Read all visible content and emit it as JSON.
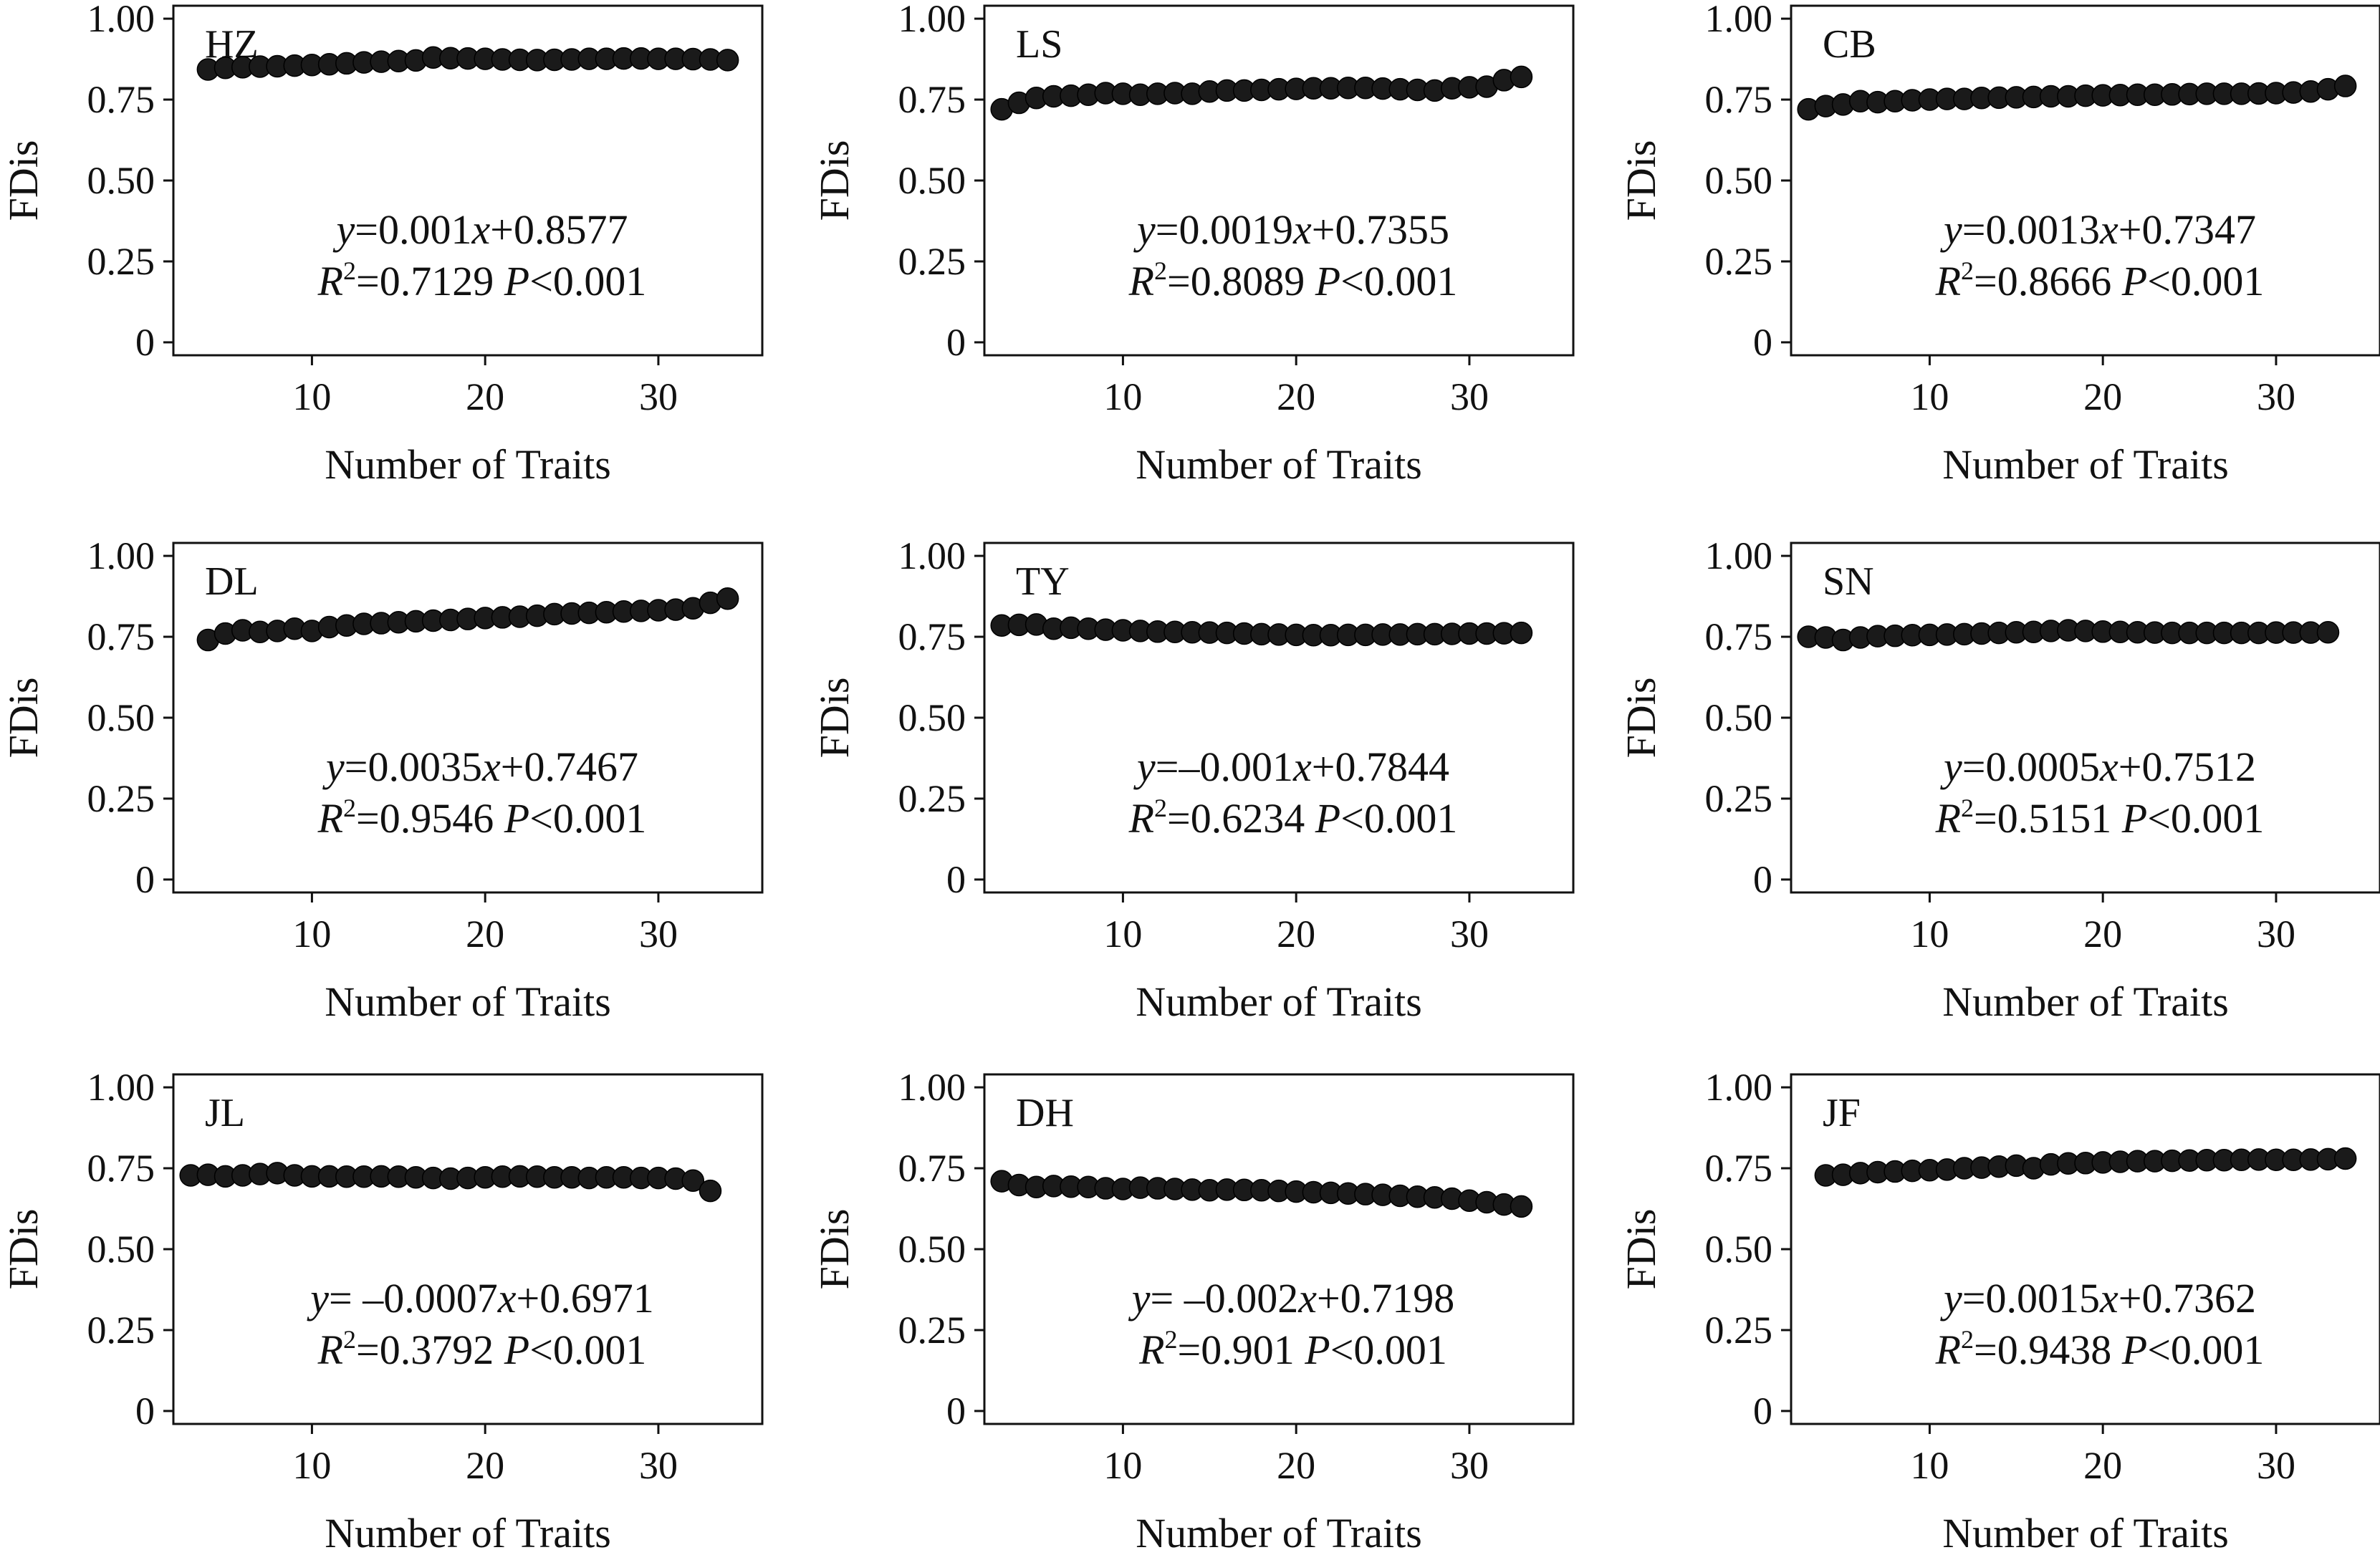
{
  "chart_data": [
    {
      "type": "scatter",
      "panel_label": "HZ",
      "xlabel": "Number of Traits",
      "ylabel": "FDis",
      "xticks": [
        10,
        20,
        30
      ],
      "yticks": [
        "0",
        "0.25",
        "0.50",
        "0.75",
        "1.00"
      ],
      "xlim": [
        2,
        36
      ],
      "ylim": [
        -0.04,
        1.04
      ],
      "x": [
        4,
        5,
        6,
        7,
        8,
        9,
        10,
        11,
        12,
        13,
        14,
        15,
        16,
        17,
        18,
        19,
        20,
        21,
        22,
        23,
        24,
        25,
        26,
        27,
        28,
        29,
        30,
        31,
        32,
        33,
        34
      ],
      "y": [
        0.843,
        0.848,
        0.85,
        0.852,
        0.853,
        0.855,
        0.857,
        0.859,
        0.862,
        0.865,
        0.867,
        0.869,
        0.871,
        0.88,
        0.878,
        0.877,
        0.876,
        0.874,
        0.873,
        0.872,
        0.873,
        0.874,
        0.876,
        0.876,
        0.877,
        0.877,
        0.876,
        0.876,
        0.875,
        0.874,
        0.872
      ],
      "equation": {
        "y": "y",
        "eq1": "=0.001",
        "x": "x",
        "eq2": "+0.8577"
      },
      "stats": {
        "r": "R",
        "sup": "2",
        "rval": "=0.7129 ",
        "p": "P",
        "pval": "<0.001"
      }
    },
    {
      "type": "scatter",
      "panel_label": "LS",
      "xlabel": "Number of Traits",
      "ylabel": "FDis",
      "xticks": [
        10,
        20,
        30
      ],
      "yticks": [
        "0",
        "0.25",
        "0.50",
        "0.75",
        "1.00"
      ],
      "xlim": [
        2,
        36
      ],
      "ylim": [
        -0.04,
        1.04
      ],
      "x": [
        3,
        4,
        5,
        6,
        7,
        8,
        9,
        10,
        11,
        12,
        13,
        14,
        15,
        16,
        17,
        18,
        19,
        20,
        21,
        22,
        23,
        24,
        25,
        26,
        27,
        28,
        29,
        30,
        31,
        32,
        33
      ],
      "y": [
        0.72,
        0.74,
        0.755,
        0.76,
        0.762,
        0.765,
        0.77,
        0.768,
        0.765,
        0.768,
        0.77,
        0.768,
        0.775,
        0.778,
        0.778,
        0.78,
        0.782,
        0.783,
        0.785,
        0.785,
        0.786,
        0.786,
        0.784,
        0.782,
        0.78,
        0.778,
        0.785,
        0.788,
        0.79,
        0.81,
        0.82
      ],
      "equation": {
        "y": "y",
        "eq1": "=0.0019",
        "x": "x",
        "eq2": "+0.7355"
      },
      "stats": {
        "r": "R",
        "sup": "2",
        "rval": "=0.8089 ",
        "p": "P",
        "pval": "<0.001"
      }
    },
    {
      "type": "scatter",
      "panel_label": "CB",
      "xlabel": "Number of Traits",
      "ylabel": "FDis",
      "xticks": [
        10,
        20,
        30
      ],
      "yticks": [
        "0",
        "0.25",
        "0.50",
        "0.75",
        "1.00"
      ],
      "xlim": [
        2,
        36
      ],
      "ylim": [
        -0.04,
        1.04
      ],
      "x": [
        3,
        4,
        5,
        6,
        7,
        8,
        9,
        10,
        11,
        12,
        13,
        14,
        15,
        16,
        17,
        18,
        19,
        20,
        21,
        22,
        23,
        24,
        25,
        26,
        27,
        28,
        29,
        30,
        31,
        32,
        33,
        34
      ],
      "y": [
        0.72,
        0.73,
        0.735,
        0.745,
        0.742,
        0.745,
        0.748,
        0.75,
        0.752,
        0.752,
        0.755,
        0.756,
        0.757,
        0.758,
        0.76,
        0.76,
        0.762,
        0.763,
        0.764,
        0.765,
        0.765,
        0.766,
        0.767,
        0.768,
        0.768,
        0.768,
        0.769,
        0.77,
        0.772,
        0.775,
        0.782,
        0.792
      ],
      "equation": {
        "y": "y",
        "eq1": "=0.0013",
        "x": "x",
        "eq2": "+0.7347"
      },
      "stats": {
        "r": "R",
        "sup": "2",
        "rval": "=0.8666 ",
        "p": "P",
        "pval": "<0.001"
      }
    },
    {
      "type": "scatter",
      "panel_label": "DL",
      "xlabel": "Number of Traits",
      "ylabel": "FDis",
      "xticks": [
        10,
        20,
        30
      ],
      "yticks": [
        "0",
        "0.25",
        "0.50",
        "0.75",
        "1.00"
      ],
      "xlim": [
        2,
        36
      ],
      "ylim": [
        -0.04,
        1.04
      ],
      "x": [
        4,
        5,
        6,
        7,
        8,
        9,
        10,
        11,
        12,
        13,
        14,
        15,
        16,
        17,
        18,
        19,
        20,
        21,
        22,
        23,
        24,
        25,
        26,
        27,
        28,
        29,
        30,
        31,
        32,
        33,
        34
      ],
      "y": [
        0.74,
        0.76,
        0.77,
        0.765,
        0.768,
        0.775,
        0.768,
        0.78,
        0.785,
        0.79,
        0.792,
        0.795,
        0.798,
        0.8,
        0.802,
        0.805,
        0.808,
        0.81,
        0.812,
        0.815,
        0.82,
        0.822,
        0.824,
        0.826,
        0.828,
        0.83,
        0.832,
        0.834,
        0.838,
        0.855,
        0.868
      ],
      "equation": {
        "y": "y",
        "eq1": "=0.0035",
        "x": "x",
        "eq2": "+0.7467"
      },
      "stats": {
        "r": "R",
        "sup": "2",
        "rval": "=0.9546 ",
        "p": "P",
        "pval": "<0.001"
      }
    },
    {
      "type": "scatter",
      "panel_label": "TY",
      "xlabel": "Number of Traits",
      "ylabel": "FDis",
      "xticks": [
        10,
        20,
        30
      ],
      "yticks": [
        "0",
        "0.25",
        "0.50",
        "0.75",
        "1.00"
      ],
      "xlim": [
        2,
        36
      ],
      "ylim": [
        -0.04,
        1.04
      ],
      "x": [
        3,
        4,
        5,
        6,
        7,
        8,
        9,
        10,
        11,
        12,
        13,
        14,
        15,
        16,
        17,
        18,
        19,
        20,
        21,
        22,
        23,
        24,
        25,
        26,
        27,
        28,
        29,
        30,
        31,
        32,
        33
      ],
      "y": [
        0.785,
        0.787,
        0.788,
        0.775,
        0.778,
        0.775,
        0.772,
        0.77,
        0.768,
        0.766,
        0.765,
        0.764,
        0.763,
        0.762,
        0.76,
        0.758,
        0.757,
        0.756,
        0.755,
        0.755,
        0.756,
        0.756,
        0.757,
        0.757,
        0.758,
        0.758,
        0.759,
        0.76,
        0.76,
        0.761,
        0.762
      ],
      "equation": {
        "y": "y",
        "eq1": "=–0.001",
        "x": "x",
        "eq2": "+0.7844"
      },
      "stats": {
        "r": "R",
        "sup": "2",
        "rval": "=0.6234 ",
        "p": "P",
        "pval": "<0.001"
      }
    },
    {
      "type": "scatter",
      "panel_label": "SN",
      "xlabel": "Number of Traits",
      "ylabel": "FDis",
      "xticks": [
        10,
        20,
        30
      ],
      "yticks": [
        "0",
        "0.25",
        "0.50",
        "0.75",
        "1.00"
      ],
      "xlim": [
        2,
        36
      ],
      "ylim": [
        -0.04,
        1.04
      ],
      "x": [
        3,
        4,
        5,
        6,
        7,
        8,
        9,
        10,
        11,
        12,
        13,
        14,
        15,
        16,
        17,
        18,
        19,
        20,
        21,
        22,
        23,
        24,
        25,
        26,
        27,
        28,
        29,
        30,
        31,
        32,
        33
      ],
      "y": [
        0.75,
        0.748,
        0.74,
        0.748,
        0.752,
        0.753,
        0.755,
        0.756,
        0.757,
        0.758,
        0.76,
        0.762,
        0.764,
        0.765,
        0.768,
        0.77,
        0.768,
        0.766,
        0.765,
        0.764,
        0.763,
        0.762,
        0.762,
        0.762,
        0.762,
        0.762,
        0.762,
        0.763,
        0.763,
        0.763,
        0.764
      ],
      "equation": {
        "y": "y",
        "eq1": "=0.0005",
        "x": "x",
        "eq2": "+0.7512"
      },
      "stats": {
        "r": "R",
        "sup": "2",
        "rval": "=0.5151 ",
        "p": "P",
        "pval": "<0.001"
      }
    },
    {
      "type": "scatter",
      "panel_label": "JL",
      "xlabel": "Number of Traits",
      "ylabel": "FDis",
      "xticks": [
        10,
        20,
        30
      ],
      "yticks": [
        "0",
        "0.25",
        "0.50",
        "0.75",
        "1.00"
      ],
      "xlim": [
        2,
        36
      ],
      "ylim": [
        -0.04,
        1.04
      ],
      "x": [
        3,
        4,
        5,
        6,
        7,
        8,
        9,
        10,
        11,
        12,
        13,
        14,
        15,
        16,
        17,
        18,
        19,
        20,
        21,
        22,
        23,
        24,
        25,
        26,
        27,
        28,
        29,
        30,
        31,
        32,
        33
      ],
      "y": [
        0.728,
        0.73,
        0.725,
        0.728,
        0.732,
        0.735,
        0.728,
        0.725,
        0.725,
        0.724,
        0.724,
        0.725,
        0.724,
        0.722,
        0.72,
        0.718,
        0.72,
        0.722,
        0.724,
        0.725,
        0.724,
        0.722,
        0.722,
        0.72,
        0.722,
        0.722,
        0.72,
        0.72,
        0.718,
        0.712,
        0.68
      ],
      "equation": {
        "y": "y",
        "eq1": "= –0.0007",
        "x": "x",
        "eq2": "+0.6971"
      },
      "stats": {
        "r": "R",
        "sup": "2",
        "rval": "=0.3792 ",
        "p": "P",
        "pval": "<0.001"
      }
    },
    {
      "type": "scatter",
      "panel_label": "DH",
      "xlabel": "Number of Traits",
      "ylabel": "FDis",
      "xticks": [
        10,
        20,
        30
      ],
      "yticks": [
        "0",
        "0.25",
        "0.50",
        "0.75",
        "1.00"
      ],
      "xlim": [
        2,
        36
      ],
      "ylim": [
        -0.04,
        1.04
      ],
      "x": [
        3,
        4,
        5,
        6,
        7,
        8,
        9,
        10,
        11,
        12,
        13,
        14,
        15,
        16,
        17,
        18,
        19,
        20,
        21,
        22,
        23,
        24,
        25,
        26,
        27,
        28,
        29,
        30,
        31,
        32,
        33
      ],
      "y": [
        0.71,
        0.698,
        0.692,
        0.695,
        0.693,
        0.692,
        0.688,
        0.686,
        0.69,
        0.688,
        0.686,
        0.684,
        0.682,
        0.684,
        0.683,
        0.682,
        0.68,
        0.678,
        0.676,
        0.674,
        0.672,
        0.67,
        0.668,
        0.665,
        0.662,
        0.66,
        0.656,
        0.65,
        0.645,
        0.638,
        0.632
      ],
      "equation": {
        "y": "y",
        "eq1": "= –0.002",
        "x": "x",
        "eq2": "+0.7198"
      },
      "stats": {
        "r": "R",
        "sup": "2",
        "rval": "=0.901 ",
        "p": "P",
        "pval": "<0.001"
      }
    },
    {
      "type": "scatter",
      "panel_label": "JF",
      "xlabel": "Number of Traits",
      "ylabel": "FDis",
      "xticks": [
        10,
        20,
        30
      ],
      "yticks": [
        "0",
        "0.25",
        "0.50",
        "0.75",
        "1.00"
      ],
      "xlim": [
        2,
        36
      ],
      "ylim": [
        -0.04,
        1.04
      ],
      "x": [
        4,
        5,
        6,
        7,
        8,
        9,
        10,
        11,
        12,
        13,
        14,
        15,
        16,
        17,
        18,
        19,
        20,
        21,
        22,
        23,
        24,
        25,
        26,
        27,
        28,
        29,
        30,
        31,
        32,
        33,
        34
      ],
      "y": [
        0.728,
        0.73,
        0.735,
        0.738,
        0.74,
        0.742,
        0.744,
        0.746,
        0.75,
        0.752,
        0.755,
        0.758,
        0.75,
        0.762,
        0.765,
        0.766,
        0.768,
        0.77,
        0.772,
        0.772,
        0.773,
        0.774,
        0.775,
        0.775,
        0.776,
        0.777,
        0.776,
        0.776,
        0.777,
        0.778,
        0.78
      ],
      "equation": {
        "y": "y",
        "eq1": "=0.0015",
        "x": "x",
        "eq2": "+0.7362"
      },
      "stats": {
        "r": "R",
        "sup": "2",
        "rval": "=0.9438 ",
        "p": "P",
        "pval": "<0.001"
      }
    }
  ]
}
